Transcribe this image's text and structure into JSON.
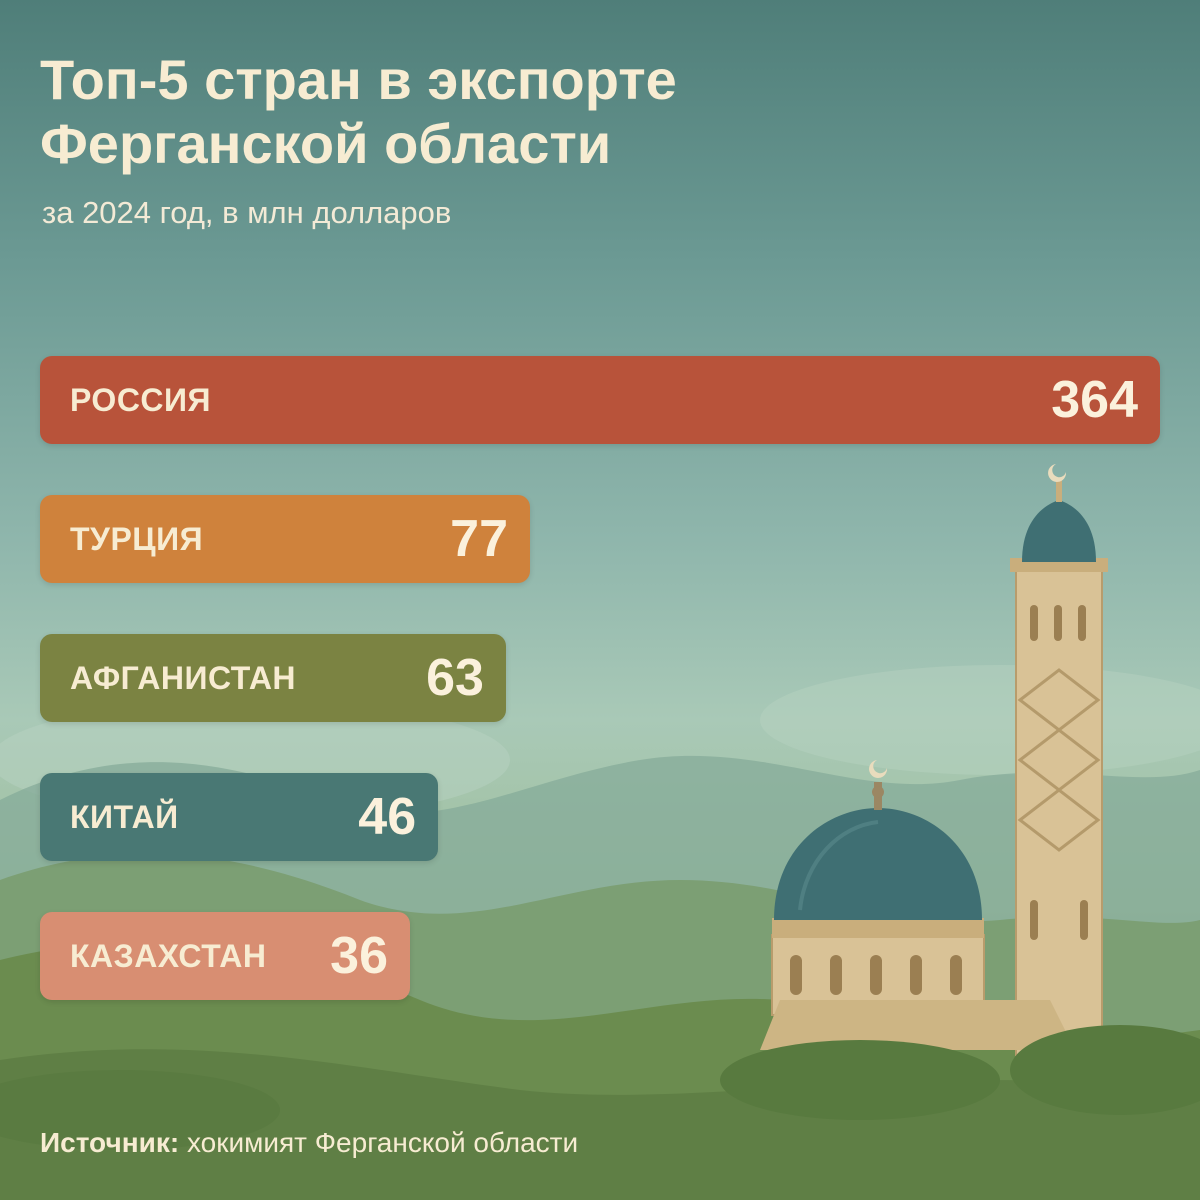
{
  "title_line1": "Топ-5 стран в экспорте",
  "title_line2": "Ферганской области",
  "subtitle": "за 2024 год, в млн долларов",
  "source_label": "Источник:",
  "source_text": "хокимият Ферганской области",
  "colors": {
    "россия": "#b8533a",
    "турция": "#cf823c",
    "афганистан": "#7b8342",
    "китай": "#497874",
    "казахстан": "#d88e72"
  },
  "chart_data": {
    "type": "bar",
    "orientation": "horizontal",
    "title": "Топ-5 стран в экспорте Ферганской области",
    "subtitle": "за 2024 год, в млн долларов",
    "categories": [
      "РОССИЯ",
      "ТУРЦИЯ",
      "АФГАНИСТАН",
      "КИТАЙ",
      "КАЗАХСТАН"
    ],
    "values": [
      364,
      77,
      63,
      46,
      36
    ],
    "bar_colors": [
      "#b8533a",
      "#cf823c",
      "#7b8342",
      "#497874",
      "#d88e72"
    ]
  }
}
